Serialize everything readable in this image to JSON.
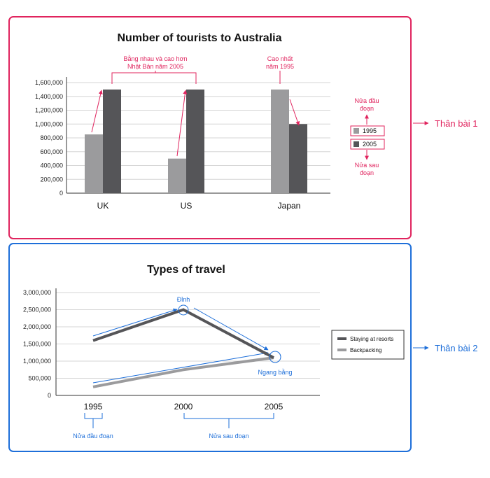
{
  "colors": {
    "pink": "#e0245e",
    "blue": "#1e6fd9",
    "bar1995": "#9b9b9d",
    "bar2005": "#555558",
    "resorts": "#555558",
    "backpacking": "#9b9b9d",
    "grid": "#d6d6d6"
  },
  "panel1": {
    "side_label": "Thân bài 1",
    "annotations": {
      "equal_higher": [
        "Bằng nhau và cao hơn",
        "Nhật Bản năm 2005"
      ],
      "highest": [
        "Cao nhất",
        "năm 1995"
      ],
      "first_half": [
        "Nửa đầu",
        "đoạn"
      ],
      "second_half": [
        "Nửa sau",
        "đoạn"
      ]
    }
  },
  "panel2": {
    "side_label": "Thân bài 2",
    "annotations": {
      "peak": "Đỉnh",
      "equal": "Ngang bằng",
      "first_half": "Nửa đầu đoạn",
      "second_half": "Nửa sau đoạn"
    }
  },
  "chart_data": [
    {
      "type": "bar",
      "title": "Number of tourists to Australia",
      "categories": [
        "UK",
        "US",
        "Japan"
      ],
      "series": [
        {
          "name": "1995",
          "values": [
            850000,
            500000,
            1500000
          ]
        },
        {
          "name": "2005",
          "values": [
            1500000,
            1500000,
            1000000
          ]
        }
      ],
      "ylim": [
        0,
        1600000
      ],
      "yticks": [
        "0",
        "200,000",
        "400,000",
        "600,000",
        "800,000",
        "1,000,000",
        "1,200,000",
        "1,400,000",
        "1,600,000"
      ],
      "grid": true,
      "legend": "right"
    },
    {
      "type": "line",
      "title": "Types of travel",
      "x": [
        "1995",
        "2000",
        "2005"
      ],
      "series": [
        {
          "name": "Staying at resorts",
          "values": [
            1600000,
            2500000,
            1100000
          ]
        },
        {
          "name": "Backpacking",
          "values": [
            250000,
            750000,
            1100000
          ]
        }
      ],
      "ylim": [
        0,
        3000000
      ],
      "yticks": [
        "0",
        "500,000",
        "1,000,000",
        "1,500,000",
        "2,000,000",
        "2,500,000",
        "3,000,000"
      ],
      "grid": true,
      "legend": "right"
    }
  ]
}
